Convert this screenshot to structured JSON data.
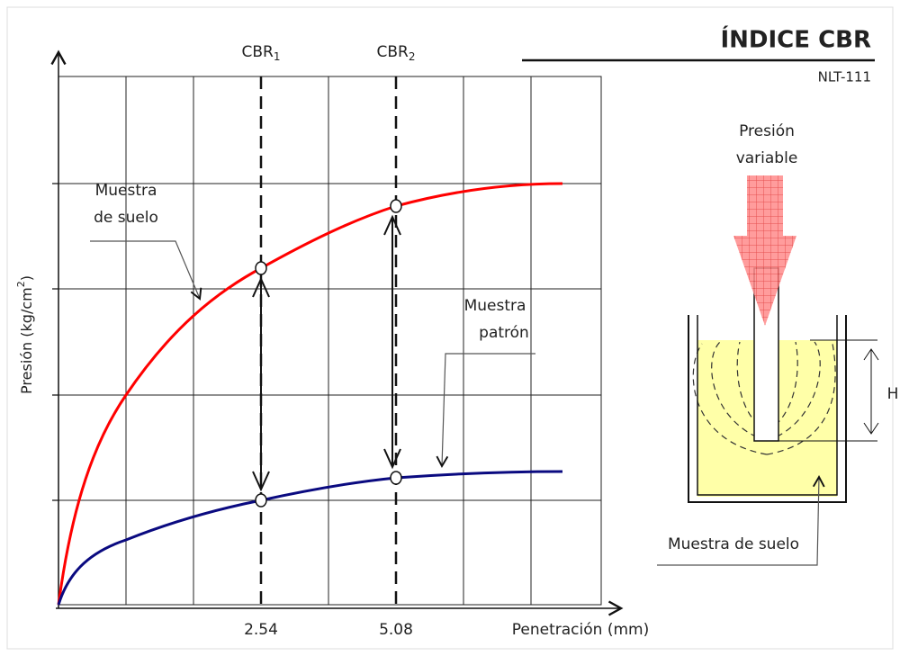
{
  "header": {
    "title": "ÍNDICE CBR",
    "standard": "NLT-111"
  },
  "graph": {
    "markers": [
      {
        "text": "CBR",
        "sub": "1"
      },
      {
        "text": "CBR",
        "sub": "2"
      }
    ],
    "y_axis_label": {
      "before": "Presión (kg/cm",
      "sup": "2",
      "after": ")"
    },
    "x_ticks": [
      "2.54",
      "5.08"
    ],
    "x_axis_label": "Penetración (mm)",
    "curve_labels": [
      {
        "lines": [
          "Muestra",
          "de suelo"
        ]
      },
      {
        "lines": [
          "Muestra",
          "patrón"
        ]
      }
    ]
  },
  "apparatus": {
    "pressure_label": [
      "Presión",
      "variable"
    ],
    "height_label": "H",
    "sample_label": "Muestra de suelo"
  }
}
